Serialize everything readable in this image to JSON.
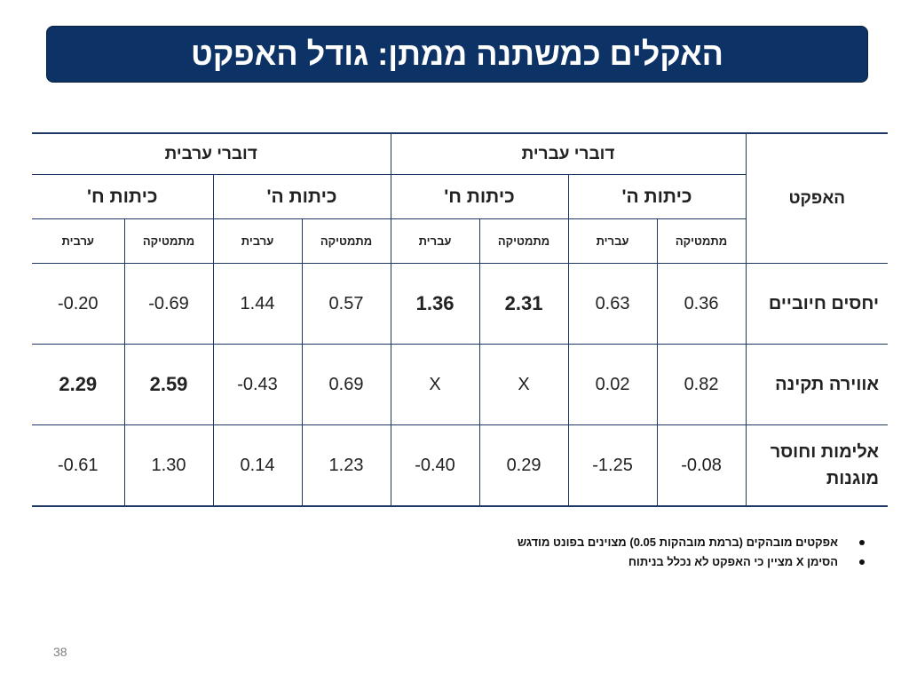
{
  "slide": {
    "title": "האקלים כמשתנה ממתן: גודל האפקט",
    "page_number": "38"
  },
  "table": {
    "effect_header": "האפקט",
    "groups": {
      "hebrew": {
        "label": "דוברי עברית",
        "color": "#1f73c8"
      },
      "arabic": {
        "label": "דוברי ערבית",
        "color": "#2ca02c"
      }
    },
    "grades": {
      "grade5": "כיתות ה'",
      "grade8": "כיתות ח'"
    },
    "subjects": {
      "math": "מתמטיקה",
      "hebrew": "עברית",
      "arabic": "ערבית"
    },
    "rows": [
      {
        "name": "יחסים חיוביים",
        "heb_g5_math": "0.36",
        "heb_g5_heb": "0.63",
        "heb_g8_math": "2.31",
        "heb_g8_heb": "1.36",
        "ara_g5_math": "0.57",
        "ara_g5_ara": "1.44",
        "ara_g8_math": "-0.69",
        "ara_g8_ara": "-0.20"
      },
      {
        "name": "אווירה תקינה",
        "heb_g5_math": "0.82",
        "heb_g5_heb": "0.02",
        "heb_g8_math": "X",
        "heb_g8_heb": "X",
        "ara_g5_math": "0.69",
        "ara_g5_ara": "-0.43",
        "ara_g8_math": "2.59",
        "ara_g8_ara": "2.29"
      },
      {
        "name": "אלימות וחוסר מוגנות",
        "heb_g5_math": "-0.08",
        "heb_g5_heb": "-1.25",
        "heb_g8_math": "0.29",
        "heb_g8_heb": "-0.40",
        "ara_g5_math": "1.23",
        "ara_g5_ara": "0.14",
        "ara_g8_math": "1.30",
        "ara_g8_ara": "-0.61"
      }
    ]
  },
  "notes": [
    "אפקטים מובהקים (ברמת מובהקות 0.05) מצוינים בפונט מודגש",
    "הסימן X מציין כי האפקט לא  נכלל בניתוח"
  ]
}
